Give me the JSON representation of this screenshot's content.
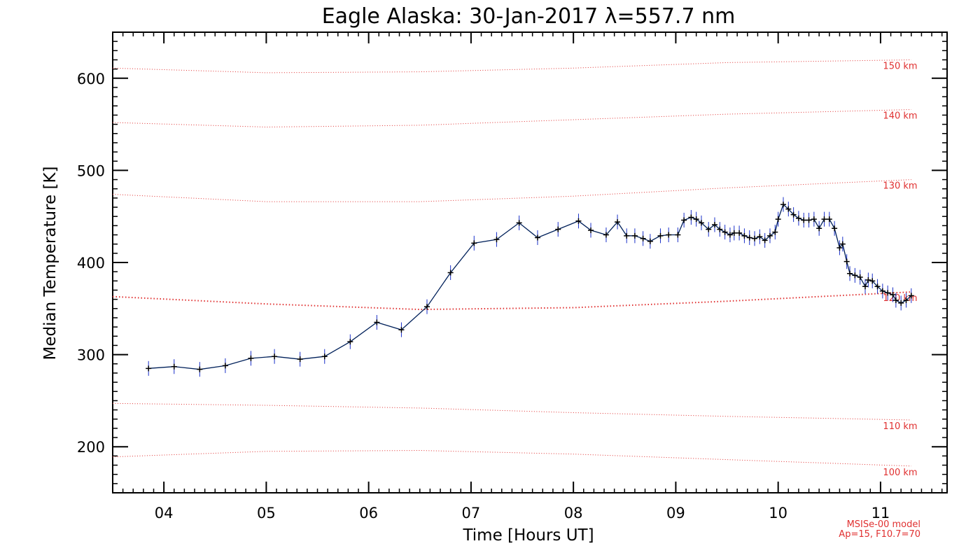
{
  "chart_data": {
    "type": "line",
    "title": "Eagle Alaska: 30-Jan-2017 λ=557.7 nm",
    "xlabel": "Time [Hours UT]",
    "ylabel": "Median Temperature [K]",
    "xlim": [
      3.5,
      11.65
    ],
    "ylim": [
      150,
      650
    ],
    "xticks": [
      4,
      5,
      6,
      7,
      8,
      9,
      10,
      11
    ],
    "xtick_labels": [
      "04",
      "05",
      "06",
      "07",
      "08",
      "09",
      "10",
      "11"
    ],
    "yticks": [
      200,
      300,
      400,
      500,
      600
    ],
    "ytick_labels": [
      "200",
      "300",
      "400",
      "500",
      "600"
    ],
    "grid": false,
    "series": [
      {
        "color": "#00205a",
        "errorbar_color": "#1a30c8",
        "error": 8,
        "points": [
          [
            3.85,
            285
          ],
          [
            4.1,
            287
          ],
          [
            4.35,
            284
          ],
          [
            4.6,
            288
          ],
          [
            4.85,
            296
          ],
          [
            5.08,
            298
          ],
          [
            5.33,
            295
          ],
          [
            5.57,
            298
          ],
          [
            5.82,
            314
          ],
          [
            6.08,
            335
          ],
          [
            6.32,
            327
          ],
          [
            6.57,
            352
          ],
          [
            6.8,
            389
          ],
          [
            7.03,
            421
          ],
          [
            7.25,
            425
          ],
          [
            7.47,
            443
          ],
          [
            7.65,
            427
          ],
          [
            7.85,
            436
          ],
          [
            8.05,
            445
          ],
          [
            8.17,
            435
          ],
          [
            8.32,
            430
          ],
          [
            8.43,
            444
          ],
          [
            8.52,
            429
          ],
          [
            8.6,
            429
          ],
          [
            8.68,
            426
          ],
          [
            8.75,
            423
          ],
          [
            8.85,
            429
          ],
          [
            8.93,
            430
          ],
          [
            9.02,
            430
          ],
          [
            9.08,
            446
          ],
          [
            9.15,
            449
          ],
          [
            9.2,
            447
          ],
          [
            9.25,
            443
          ],
          [
            9.32,
            436
          ],
          [
            9.38,
            441
          ],
          [
            9.43,
            436
          ],
          [
            9.48,
            433
          ],
          [
            9.53,
            430
          ],
          [
            9.57,
            432
          ],
          [
            9.62,
            432
          ],
          [
            9.67,
            429
          ],
          [
            9.72,
            427
          ],
          [
            9.77,
            426
          ],
          [
            9.82,
            428
          ],
          [
            9.87,
            424
          ],
          [
            9.92,
            429
          ],
          [
            9.97,
            433
          ],
          [
            10.0,
            447
          ],
          [
            10.05,
            463
          ],
          [
            10.1,
            458
          ],
          [
            10.15,
            452
          ],
          [
            10.2,
            448
          ],
          [
            10.25,
            446
          ],
          [
            10.3,
            446
          ],
          [
            10.35,
            447
          ],
          [
            10.4,
            437
          ],
          [
            10.45,
            447
          ],
          [
            10.5,
            447
          ],
          [
            10.55,
            437
          ],
          [
            10.6,
            416
          ],
          [
            10.63,
            420
          ],
          [
            10.67,
            401
          ],
          [
            10.7,
            388
          ],
          [
            10.75,
            386
          ],
          [
            10.8,
            384
          ],
          [
            10.85,
            374
          ],
          [
            10.88,
            381
          ],
          [
            10.92,
            380
          ],
          [
            10.97,
            374
          ],
          [
            11.02,
            369
          ],
          [
            11.07,
            367
          ],
          [
            11.12,
            365
          ],
          [
            11.15,
            359
          ],
          [
            11.2,
            356
          ],
          [
            11.25,
            359
          ],
          [
            11.3,
            364
          ]
        ]
      }
    ],
    "model_curves": [
      {
        "label": "100 km",
        "color": "#e03030",
        "x": [
          3.5,
          5.0,
          6.5,
          8.0,
          9.5,
          11.3
        ],
        "y": [
          189,
          195,
          196,
          192,
          186,
          179
        ]
      },
      {
        "label": "110 km",
        "color": "#e03030",
        "x": [
          3.5,
          5.0,
          6.5,
          8.0,
          9.5,
          11.3
        ],
        "y": [
          247,
          245,
          242,
          237,
          233,
          229
        ]
      },
      {
        "label": "120 km",
        "color": "#e03030",
        "x": [
          3.5,
          5.0,
          6.5,
          8.0,
          9.5,
          11.3
        ],
        "y": [
          363,
          355,
          349,
          351,
          358,
          368
        ]
      },
      {
        "label": "130 km",
        "color": "#e03030",
        "x": [
          3.5,
          5.0,
          6.5,
          8.0,
          9.5,
          11.3
        ],
        "y": [
          474,
          466,
          466,
          472,
          481,
          490
        ]
      },
      {
        "label": "140 km",
        "color": "#e03030",
        "x": [
          3.5,
          5.0,
          6.5,
          8.0,
          9.5,
          11.3
        ],
        "y": [
          552,
          547,
          549,
          555,
          561,
          566
        ]
      },
      {
        "label": "150 km",
        "color": "#e03030",
        "x": [
          3.5,
          5.0,
          6.5,
          8.0,
          9.5,
          11.3
        ],
        "y": [
          611,
          606,
          607,
          611,
          617,
          620
        ]
      }
    ],
    "annotations": [
      "MSISe-00 model",
      "Ap=15, F10.7=70"
    ]
  }
}
